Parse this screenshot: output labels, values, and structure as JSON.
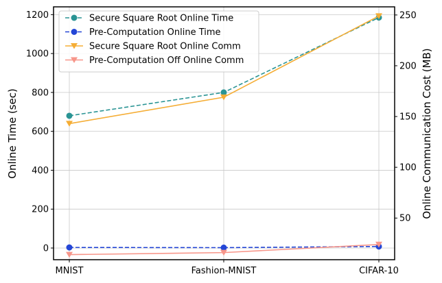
{
  "chart_data": {
    "type": "line",
    "categories": [
      "MNIST",
      "Fashion-MNIST",
      "CIFAR-10"
    ],
    "ylabel_left": "Online Time (sec)",
    "ylabel_right": "Online Communication Cost  (MB)",
    "left_axis": {
      "ylim": [
        -60,
        1240
      ],
      "ticks": [
        0,
        200,
        400,
        600,
        800,
        1000,
        1200
      ]
    },
    "right_axis": {
      "ylim": [
        9,
        258
      ],
      "ticks": [
        50,
        100,
        150,
        200,
        250
      ]
    },
    "grid": true,
    "legend_position": "top-left",
    "series": [
      {
        "name": "Secure Square Root Online Time",
        "axis": "left",
        "values": [
          680,
          800,
          1185
        ],
        "color": "#2a9494",
        "dash": true,
        "marker": "circle"
      },
      {
        "name": "Pre-Computation Online Time",
        "axis": "left",
        "values": [
          3,
          2,
          8
        ],
        "color": "#2446d6",
        "dash": true,
        "marker": "circle"
      },
      {
        "name": "Secure Square Root Online Comm",
        "axis": "right",
        "values": [
          143,
          169,
          249
        ],
        "color": "#f5ad35",
        "dash": false,
        "marker": "triangle-down"
      },
      {
        "name": "Pre-Computation Off Online Comm",
        "axis": "right",
        "values": [
          14,
          16,
          24
        ],
        "color": "#f7968a",
        "dash": false,
        "marker": "triangle-down"
      }
    ]
  }
}
